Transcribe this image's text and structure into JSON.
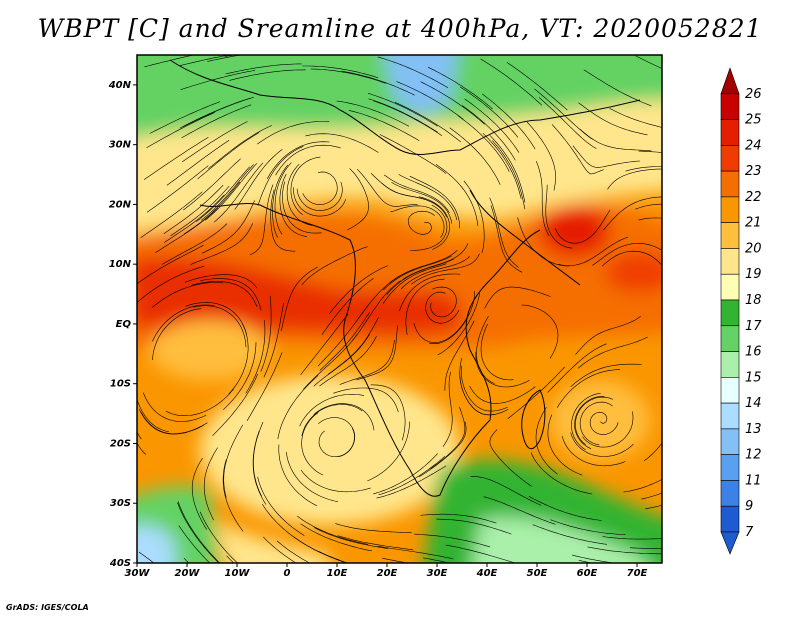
{
  "title": "WBPT [C] and Sreamline at 400hPa, VT: 2020052821",
  "credit": "GrADS: IGES/COLA",
  "map": {
    "lon_range": [
      -30,
      75
    ],
    "lat_range": [
      -40,
      45
    ],
    "lon_ticks": [
      {
        "value": -30,
        "label": "30W"
      },
      {
        "value": -20,
        "label": "20W"
      },
      {
        "value": -10,
        "label": "10W"
      },
      {
        "value": 0,
        "label": "0"
      },
      {
        "value": 10,
        "label": "10E"
      },
      {
        "value": 20,
        "label": "20E"
      },
      {
        "value": 30,
        "label": "30E"
      },
      {
        "value": 40,
        "label": "40E"
      },
      {
        "value": 50,
        "label": "50E"
      },
      {
        "value": 60,
        "label": "60E"
      },
      {
        "value": 70,
        "label": "70E"
      }
    ],
    "lat_ticks": [
      {
        "value": 40,
        "label": "40N"
      },
      {
        "value": 30,
        "label": "30N"
      },
      {
        "value": 20,
        "label": "20N"
      },
      {
        "value": 10,
        "label": "10N"
      },
      {
        "value": 0,
        "label": "EQ"
      },
      {
        "value": -10,
        "label": "10S"
      },
      {
        "value": -20,
        "label": "20S"
      },
      {
        "value": -30,
        "label": "30S"
      },
      {
        "value": -40,
        "label": "40S"
      }
    ]
  },
  "colorbar": {
    "levels": [
      {
        "label": "26",
        "color": "#a50000"
      },
      {
        "label": "25",
        "color": "#c80000"
      },
      {
        "label": "24",
        "color": "#e61e00"
      },
      {
        "label": "23",
        "color": "#f03c00"
      },
      {
        "label": "22",
        "color": "#f56e00"
      },
      {
        "label": "21",
        "color": "#fa9600"
      },
      {
        "label": "20",
        "color": "#ffbe3c"
      },
      {
        "label": "19",
        "color": "#ffe68c"
      },
      {
        "label": "18",
        "color": "#ffffb4"
      },
      {
        "label": "17",
        "color": "#32b432"
      },
      {
        "label": "16",
        "color": "#64d264"
      },
      {
        "label": "15",
        "color": "#aaf0aa"
      },
      {
        "label": "14",
        "color": "#e6ffff"
      },
      {
        "label": "13",
        "color": "#aaddff"
      },
      {
        "label": "12",
        "color": "#82c0f5"
      },
      {
        "label": "11",
        "color": "#5aa0f0"
      },
      {
        "label": "9",
        "color": "#3c82e6"
      },
      {
        "label": "7",
        "color": "#1e5ad2"
      }
    ],
    "bottom_color": "#1e5ad2"
  }
}
